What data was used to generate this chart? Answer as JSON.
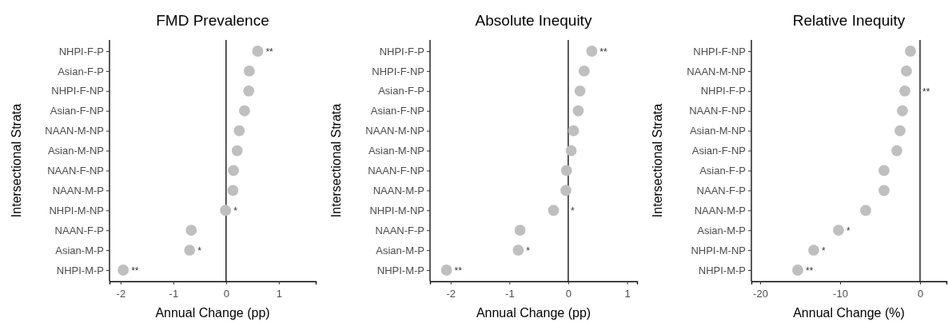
{
  "chart_data": [
    {
      "type": "scatter",
      "orientation": "horizontal",
      "title": "FMD Prevalence",
      "xlabel": "Annual Change (pp)",
      "ylabel": "Intersectional Strata",
      "categories": [
        "NHPI-F-P",
        "Asian-F-P",
        "NHPI-F-NP",
        "Asian-F-NP",
        "NAAN-M-NP",
        "Asian-M-NP",
        "NAAN-F-NP",
        "NAAN-M-P",
        "NHPI-M-NP",
        "NAAN-F-P",
        "Asian-M-P",
        "NHPI-M-P"
      ],
      "values": [
        0.6,
        0.44,
        0.43,
        0.35,
        0.25,
        0.21,
        0.14,
        0.13,
        -0.01,
        -0.66,
        -0.69,
        -1.95
      ],
      "value_labels": [
        "**",
        null,
        null,
        null,
        null,
        null,
        null,
        null,
        "*",
        null,
        "*",
        "**"
      ],
      "color": "#bfbfbf",
      "marker": "circle",
      "xlim": [
        -2.21,
        1.7
      ],
      "xticks": [
        -2,
        -1,
        0,
        1
      ],
      "ref_lines": [
        {
          "axis": "x",
          "value": 0,
          "color": "#000000"
        }
      ]
    },
    {
      "type": "scatter",
      "orientation": "horizontal",
      "title": "Absolute Inequity",
      "xlabel": "Annual Change (pp)",
      "ylabel": "Intersectional Strata",
      "categories": [
        "NHPI-F-P",
        "NHPI-F-NP",
        "Asian-F-P",
        "Asian-F-NP",
        "NAAN-M-NP",
        "Asian-M-NP",
        "NAAN-F-NP",
        "NAAN-M-P",
        "NHPI-M-NP",
        "NAAN-F-P",
        "Asian-M-P",
        "NHPI-M-P"
      ],
      "values": [
        0.4,
        0.27,
        0.2,
        0.17,
        0.09,
        0.05,
        -0.03,
        -0.04,
        -0.25,
        -0.82,
        -0.85,
        -2.07
      ],
      "value_labels": [
        "**",
        null,
        null,
        null,
        null,
        null,
        null,
        null,
        "*",
        null,
        "*",
        "**"
      ],
      "color": "#bfbfbf",
      "marker": "circle",
      "xlim": [
        -2.35,
        1.17
      ],
      "xticks": [
        -2,
        -1,
        0,
        1
      ],
      "ref_lines": [
        {
          "axis": "x",
          "value": 0,
          "color": "#000000"
        }
      ]
    },
    {
      "type": "scatter",
      "orientation": "horizontal",
      "title": "Relative Inequity",
      "xlabel": "Annual Change (%)",
      "ylabel": "Intersectional Strata",
      "categories": [
        "NHPI-F-NP",
        "NAAN-M-NP",
        "NHPI-F-P",
        "NAAN-F-NP",
        "Asian-M-NP",
        "Asian-F-NP",
        "Asian-F-P",
        "NAAN-F-P",
        "NAAN-M-P",
        "Asian-M-P",
        "NHPI-M-NP",
        "NHPI-M-P"
      ],
      "values": [
        -1.2,
        -1.7,
        -1.9,
        -2.2,
        -2.5,
        -2.9,
        -4.5,
        -4.5,
        -6.8,
        -10.2,
        -13.3,
        -15.3
      ],
      "value_labels": [
        null,
        null,
        "**",
        null,
        null,
        null,
        null,
        null,
        null,
        "*",
        "*",
        "**"
      ],
      "color": "#bfbfbf",
      "marker": "circle",
      "xlim": [
        -21.1,
        3.3
      ],
      "xticks": [
        -20,
        -10,
        0
      ],
      "ref_lines": [
        {
          "axis": "x",
          "value": 0,
          "color": "#000000"
        }
      ]
    }
  ]
}
